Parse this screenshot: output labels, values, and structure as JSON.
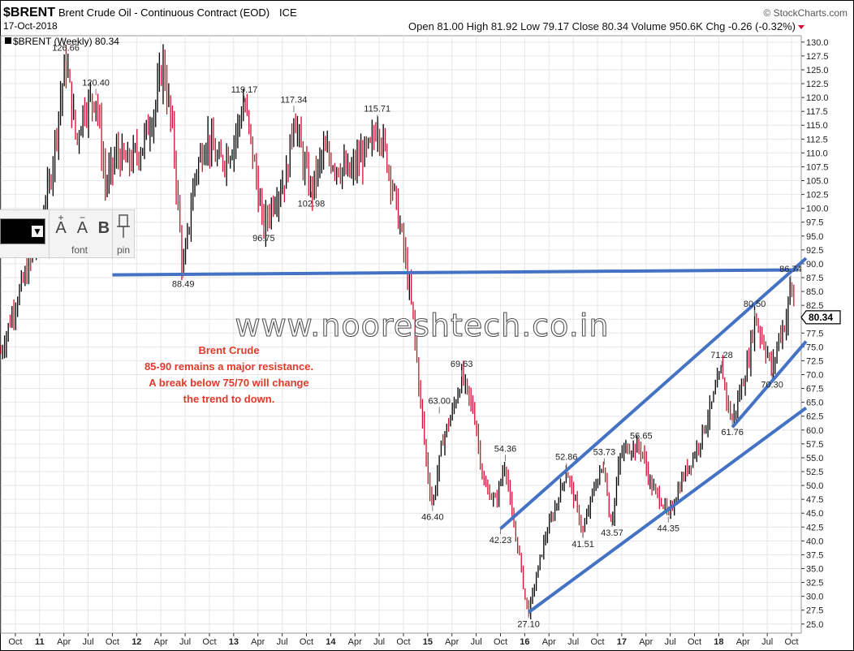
{
  "header": {
    "symbol": "$BRENT",
    "name": "Brent Crude Oil - Continuous Contract (EOD)",
    "exchange": "ICE",
    "date": "17-Oct-2018",
    "brand": "© StockCharts.com",
    "legend": "$BRENT (Weekly) 80.34",
    "stats": "Open 81.00  High 81.92  Low 79.17  Close 80.34  Volume 950.6K  Chg -0.26 (-0.32%)"
  },
  "watermark": "www.nooreshtech.co.in",
  "note": {
    "lines": [
      "Brent Crude",
      "85-90 remains a major resistance.",
      "A break below 75/70 will change",
      "the trend to down."
    ]
  },
  "toolbar": {
    "increase_font": "+",
    "decrease_font": "−",
    "bold": "B",
    "font_label": "font",
    "pin_label": "pin"
  },
  "colors": {
    "up": "#000000",
    "down": "#d01030",
    "trendline": "#4472c4",
    "note": "#e03a2a"
  },
  "chart_data": {
    "type": "ohlc",
    "y_range": [
      23.5,
      131
    ],
    "y_ticks": [
      "130.0",
      "127.5",
      "125.0",
      "122.5",
      "120.0",
      "117.5",
      "115.0",
      "112.5",
      "110.0",
      "107.5",
      "105.0",
      "102.5",
      "100.0",
      "97.5",
      "95.0",
      "92.5",
      "90.0",
      "87.5",
      "85.0",
      "82.5",
      "80.0",
      "77.5",
      "75.0",
      "72.5",
      "70.0",
      "67.5",
      "65.0",
      "62.5",
      "60.0",
      "57.5",
      "55.0",
      "52.5",
      "50.0",
      "47.5",
      "45.0",
      "42.5",
      "40.0",
      "37.5",
      "35.0",
      "32.5",
      "30.0",
      "27.5",
      "25.0"
    ],
    "x_ticks": [
      {
        "label": "Oct",
        "t": 2010.75,
        "year": false
      },
      {
        "label": "11",
        "t": 2011.0,
        "year": true
      },
      {
        "label": "Apr",
        "t": 2011.25,
        "year": false
      },
      {
        "label": "Jul",
        "t": 2011.5,
        "year": false
      },
      {
        "label": "Oct",
        "t": 2011.75,
        "year": false
      },
      {
        "label": "12",
        "t": 2012.0,
        "year": true
      },
      {
        "label": "Apr",
        "t": 2012.25,
        "year": false
      },
      {
        "label": "Jul",
        "t": 2012.5,
        "year": false
      },
      {
        "label": "Oct",
        "t": 2012.75,
        "year": false
      },
      {
        "label": "13",
        "t": 2013.0,
        "year": true
      },
      {
        "label": "Apr",
        "t": 2013.25,
        "year": false
      },
      {
        "label": "Jul",
        "t": 2013.5,
        "year": false
      },
      {
        "label": "Oct",
        "t": 2013.75,
        "year": false
      },
      {
        "label": "14",
        "t": 2014.0,
        "year": true
      },
      {
        "label": "Apr",
        "t": 2014.25,
        "year": false
      },
      {
        "label": "Jul",
        "t": 2014.5,
        "year": false
      },
      {
        "label": "Oct",
        "t": 2014.75,
        "year": false
      },
      {
        "label": "15",
        "t": 2015.0,
        "year": true
      },
      {
        "label": "Apr",
        "t": 2015.25,
        "year": false
      },
      {
        "label": "Jul",
        "t": 2015.5,
        "year": false
      },
      {
        "label": "Oct",
        "t": 2015.75,
        "year": false
      },
      {
        "label": "16",
        "t": 2016.0,
        "year": true
      },
      {
        "label": "Apr",
        "t": 2016.25,
        "year": false
      },
      {
        "label": "Jul",
        "t": 2016.5,
        "year": false
      },
      {
        "label": "Oct",
        "t": 2016.75,
        "year": false
      },
      {
        "label": "17",
        "t": 2017.0,
        "year": true
      },
      {
        "label": "Apr",
        "t": 2017.25,
        "year": false
      },
      {
        "label": "Jul",
        "t": 2017.5,
        "year": false
      },
      {
        "label": "Oct",
        "t": 2017.75,
        "year": false
      },
      {
        "label": "18",
        "t": 2018.0,
        "year": true
      },
      {
        "label": "Apr",
        "t": 2018.25,
        "year": false
      },
      {
        "label": "Jul",
        "t": 2018.5,
        "year": false
      },
      {
        "label": "Oct",
        "t": 2018.75,
        "year": false
      }
    ],
    "price_path": [
      [
        2010.6,
        74
      ],
      [
        2010.75,
        83
      ],
      [
        2010.9,
        90
      ],
      [
        2011.0,
        96
      ],
      [
        2011.1,
        104
      ],
      [
        2011.2,
        118
      ],
      [
        2011.27,
        126.66
      ],
      [
        2011.38,
        112
      ],
      [
        2011.45,
        118
      ],
      [
        2011.58,
        120.4
      ],
      [
        2011.68,
        104
      ],
      [
        2011.8,
        110
      ],
      [
        2011.9,
        108
      ],
      [
        2012.05,
        111
      ],
      [
        2012.2,
        119
      ],
      [
        2012.27,
        126.5
      ],
      [
        2012.38,
        112
      ],
      [
        2012.46,
        92
      ],
      [
        2012.48,
        88.49
      ],
      [
        2012.6,
        106
      ],
      [
        2012.72,
        113
      ],
      [
        2012.85,
        108
      ],
      [
        2012.98,
        111
      ],
      [
        2013.11,
        119.17
      ],
      [
        2013.22,
        107
      ],
      [
        2013.3,
        97
      ],
      [
        2013.31,
        96.75
      ],
      [
        2013.42,
        102
      ],
      [
        2013.55,
        106
      ],
      [
        2013.62,
        117.34
      ],
      [
        2013.72,
        108
      ],
      [
        2013.8,
        102.98
      ],
      [
        2013.92,
        110
      ],
      [
        2014.05,
        108
      ],
      [
        2014.2,
        106
      ],
      [
        2014.3,
        109
      ],
      [
        2014.42,
        111
      ],
      [
        2014.48,
        115.71
      ],
      [
        2014.62,
        106
      ],
      [
        2014.75,
        93
      ],
      [
        2014.85,
        80
      ],
      [
        2014.92,
        66
      ],
      [
        2015.0,
        52
      ],
      [
        2015.05,
        46.4
      ],
      [
        2015.15,
        58
      ],
      [
        2015.25,
        63
      ],
      [
        2015.35,
        69.63
      ],
      [
        2015.48,
        63
      ],
      [
        2015.58,
        50
      ],
      [
        2015.7,
        47
      ],
      [
        2015.8,
        54.36
      ],
      [
        2015.87,
        44
      ],
      [
        2015.94,
        38
      ],
      [
        2016.0,
        30
      ],
      [
        2016.04,
        27.1
      ],
      [
        2016.2,
        40
      ],
      [
        2016.35,
        48
      ],
      [
        2016.43,
        52.86
      ],
      [
        2016.55,
        45
      ],
      [
        2016.6,
        41.51
      ],
      [
        2016.72,
        50
      ],
      [
        2016.82,
        53.73
      ],
      [
        2016.87,
        45
      ],
      [
        2016.9,
        43.57
      ],
      [
        2016.98,
        55
      ],
      [
        2017.05,
        57
      ],
      [
        2017.2,
        56.65
      ],
      [
        2017.3,
        50
      ],
      [
        2017.42,
        47
      ],
      [
        2017.48,
        44.35
      ],
      [
        2017.62,
        51
      ],
      [
        2017.78,
        57
      ],
      [
        2017.9,
        63
      ],
      [
        2018.0,
        69
      ],
      [
        2018.03,
        71.28
      ],
      [
        2018.1,
        64
      ],
      [
        2018.14,
        61.76
      ],
      [
        2018.3,
        72
      ],
      [
        2018.37,
        80.5
      ],
      [
        2018.5,
        74
      ],
      [
        2018.55,
        70.3
      ],
      [
        2018.62,
        77
      ],
      [
        2018.7,
        80
      ],
      [
        2018.74,
        86.74
      ],
      [
        2018.77,
        83
      ],
      [
        2018.79,
        80.34
      ]
    ],
    "annotations": [
      {
        "label": "126.66",
        "t": 2011.27,
        "v": 126.66,
        "pos": "above"
      },
      {
        "label": "120.40",
        "t": 2011.58,
        "v": 120.4,
        "pos": "above"
      },
      {
        "label": "88.49",
        "t": 2012.48,
        "v": 88.49,
        "pos": "below"
      },
      {
        "label": "119.17",
        "t": 2013.11,
        "v": 119.17,
        "pos": "above"
      },
      {
        "label": "96.75",
        "t": 2013.31,
        "v": 96.75,
        "pos": "below"
      },
      {
        "label": "117.34",
        "t": 2013.62,
        "v": 117.34,
        "pos": "above"
      },
      {
        "label": "102.98",
        "t": 2013.8,
        "v": 102.98,
        "pos": "below"
      },
      {
        "label": "115.71",
        "t": 2014.48,
        "v": 115.71,
        "pos": "above"
      },
      {
        "label": "46.40",
        "t": 2015.05,
        "v": 46.4,
        "pos": "below"
      },
      {
        "label": "63.00",
        "t": 2015.12,
        "v": 63.0,
        "pos": "above"
      },
      {
        "label": "69.63",
        "t": 2015.35,
        "v": 69.63,
        "pos": "above"
      },
      {
        "label": "54.36",
        "t": 2015.8,
        "v": 54.36,
        "pos": "above"
      },
      {
        "label": "42.23",
        "t": 2015.75,
        "v": 42.23,
        "pos": "below"
      },
      {
        "label": "27.10",
        "t": 2016.04,
        "v": 27.1,
        "pos": "below"
      },
      {
        "label": "52.86",
        "t": 2016.43,
        "v": 52.86,
        "pos": "above"
      },
      {
        "label": "41.51",
        "t": 2016.6,
        "v": 41.51,
        "pos": "below"
      },
      {
        "label": "53.73",
        "t": 2016.82,
        "v": 53.73,
        "pos": "above"
      },
      {
        "label": "43.57",
        "t": 2016.9,
        "v": 43.57,
        "pos": "below"
      },
      {
        "label": "56.65",
        "t": 2017.2,
        "v": 56.65,
        "pos": "above"
      },
      {
        "label": "44.35",
        "t": 2017.48,
        "v": 44.35,
        "pos": "below"
      },
      {
        "label": "71.28",
        "t": 2018.03,
        "v": 71.28,
        "pos": "above"
      },
      {
        "label": "61.76",
        "t": 2018.14,
        "v": 61.76,
        "pos": "below"
      },
      {
        "label": "80.50",
        "t": 2018.37,
        "v": 80.5,
        "pos": "above"
      },
      {
        "label": "70.30",
        "t": 2018.55,
        "v": 70.3,
        "pos": "below"
      },
      {
        "label": "86.74",
        "t": 2018.74,
        "v": 86.74,
        "pos": "above"
      }
    ],
    "last_price_label": "80.34",
    "last_price": 80.34,
    "trendlines": [
      {
        "name": "resistance",
        "p1": [
          2011.75,
          88.0
        ],
        "p2": [
          2018.82,
          88.9
        ]
      },
      {
        "name": "channel-top",
        "p1": [
          2015.75,
          42.2
        ],
        "p2": [
          2018.9,
          91.0
        ]
      },
      {
        "name": "channel-bottom",
        "p1": [
          2016.04,
          27.1
        ],
        "p2": [
          2018.9,
          64.0
        ]
      },
      {
        "name": "inner-support",
        "p1": [
          2018.14,
          60.5
        ],
        "p2": [
          2018.9,
          76.0
        ]
      }
    ]
  }
}
